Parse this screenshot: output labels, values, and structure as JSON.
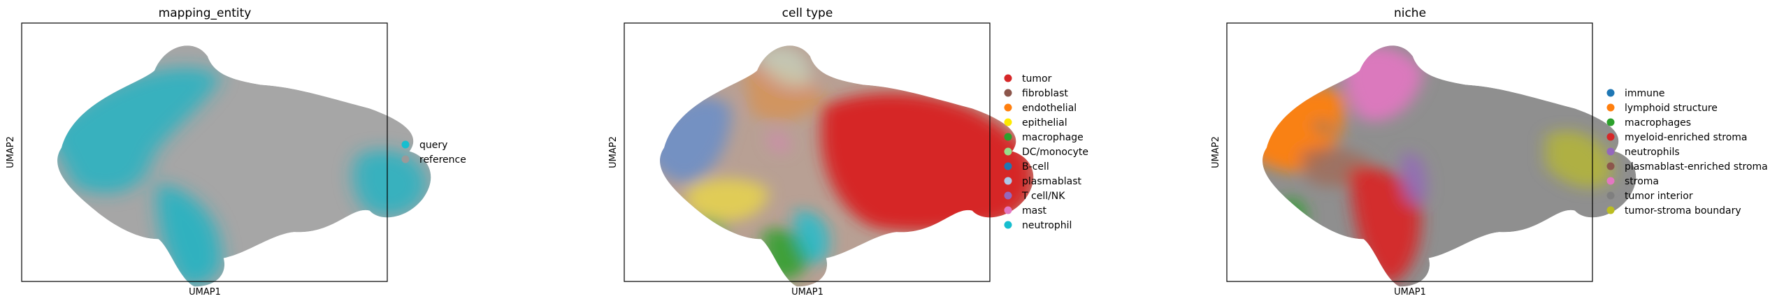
{
  "chart_data": [
    {
      "type": "scatter",
      "title": "mapping_entity",
      "xlabel": "UMAP1",
      "ylabel": "UMAP2",
      "legend_position": "right",
      "series": [
        {
          "name": "query",
          "color": "#17becf"
        },
        {
          "name": "reference",
          "color": "#9a9a9a"
        }
      ]
    },
    {
      "type": "scatter",
      "title": "cell type",
      "xlabel": "UMAP1",
      "ylabel": "UMAP2",
      "legend_position": "right",
      "series": [
        {
          "name": "tumor",
          "color": "#d62728"
        },
        {
          "name": "fibroblast",
          "color": "#8c564b"
        },
        {
          "name": "endothelial",
          "color": "#ff7f0e"
        },
        {
          "name": "epithelial",
          "color": "#ffea00"
        },
        {
          "name": "macrophage",
          "color": "#2ca02c"
        },
        {
          "name": "DC/monocyte",
          "color": "#98df8a"
        },
        {
          "name": "B-cell",
          "color": "#1f77b4"
        },
        {
          "name": "plasmablast",
          "color": "#aec7e8"
        },
        {
          "name": "T cell/NK",
          "color": "#9467bd"
        },
        {
          "name": "mast",
          "color": "#e377c2"
        },
        {
          "name": "neutrophil",
          "color": "#17becf"
        }
      ]
    },
    {
      "type": "scatter",
      "title": "niche",
      "xlabel": "UMAP1",
      "ylabel": "UMAP2",
      "legend_position": "right",
      "series": [
        {
          "name": "immune",
          "color": "#1f77b4"
        },
        {
          "name": "lymphoid structure",
          "color": "#ff7f0e"
        },
        {
          "name": "macrophages",
          "color": "#2ca02c"
        },
        {
          "name": "myeloid-enriched stroma",
          "color": "#d62728"
        },
        {
          "name": "neutrophils",
          "color": "#9467bd"
        },
        {
          "name": "plasmablast-enriched stroma",
          "color": "#8c564b"
        },
        {
          "name": "stroma",
          "color": "#e377c2"
        },
        {
          "name": "tumor interior",
          "color": "#7f7f7f"
        },
        {
          "name": "tumor-stroma boundary",
          "color": "#bcbd22"
        }
      ]
    }
  ]
}
